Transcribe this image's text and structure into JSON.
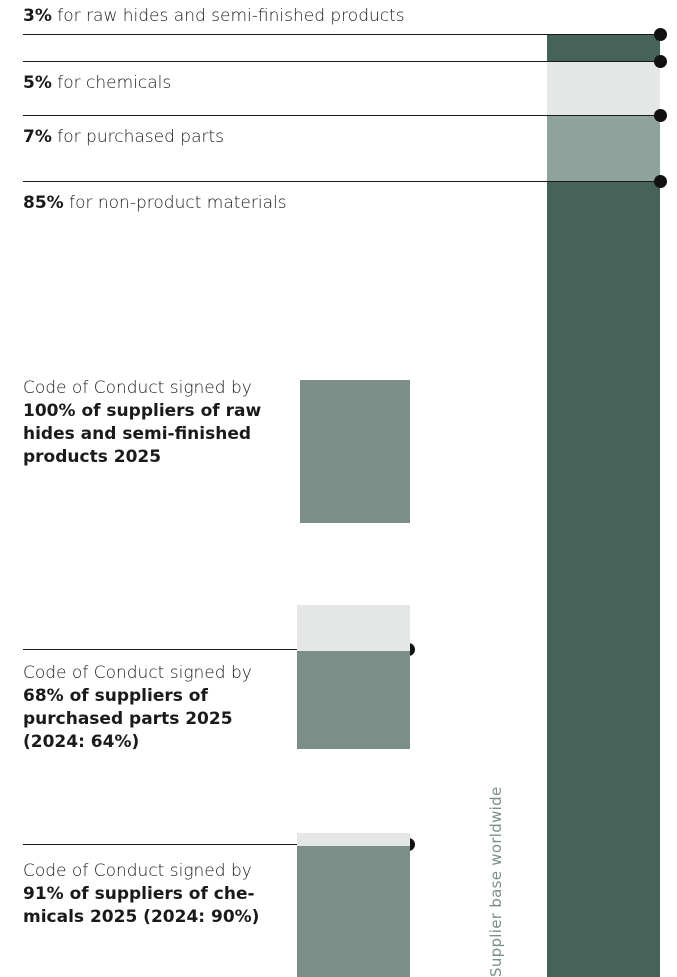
{
  "breakdown": [
    {
      "pct": "3%",
      "text": " for raw hides and semi-finished products"
    },
    {
      "pct": "5%",
      "text": " for chemicals"
    },
    {
      "pct": "7%",
      "text": " for purchased parts"
    },
    {
      "pct": "85%",
      "text": " for non-product materials"
    }
  ],
  "coc_blocks": [
    {
      "lead": "Code of Conduct signed by",
      "bold": "100% of suppliers of raw hides and semi-finished products 2025"
    },
    {
      "lead": "Code of Conduct signed by",
      "bold": "68% of suppliers of purchased parts 2025 (2024: 64%)"
    },
    {
      "lead": "Code of Conduct signed by",
      "bold": "91% of suppliers of che-micals 2025 (2024: 90%)"
    }
  ],
  "vertical_label": "Supplier base worldwide",
  "chart_data": [
    {
      "type": "bar",
      "title": "",
      "xlabel": "",
      "ylabel": "Supplier base worldwide",
      "stacked": true,
      "categories": [
        "Supplier base worldwide"
      ],
      "series": [
        {
          "name": "raw hides and semi-finished products",
          "values": [
            3
          ],
          "color": "#46635a"
        },
        {
          "name": "chemicals",
          "values": [
            5
          ],
          "color": "#e4e7e6"
        },
        {
          "name": "purchased parts",
          "values": [
            7
          ],
          "color": "#8fa39d"
        },
        {
          "name": "non-product materials",
          "values": [
            85
          ],
          "color": "#46635a"
        }
      ]
    },
    {
      "type": "bar",
      "title": "",
      "categories": [
        "raw hides and semi-finished products",
        "purchased parts",
        "chemicals"
      ],
      "values": [
        100,
        68,
        91
      ],
      "prior_values": [
        null,
        64,
        90
      ],
      "ylim": [
        0,
        100
      ],
      "fill_color": "#7b8f88",
      "remainder_color": "#e4e7e6"
    }
  ]
}
